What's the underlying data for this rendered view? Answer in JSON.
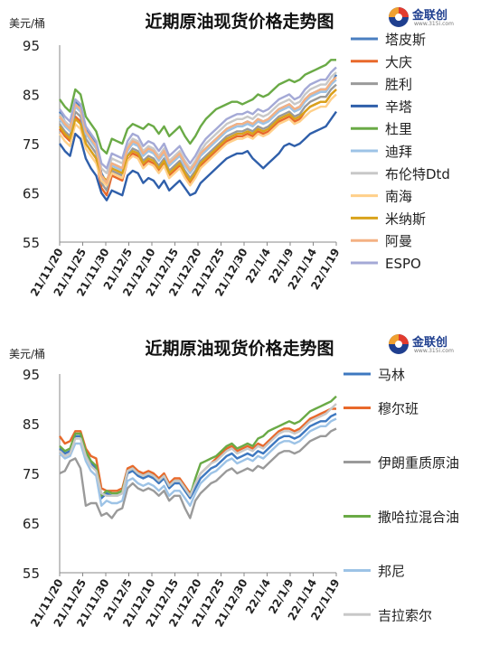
{
  "chart_data": [
    {
      "type": "line",
      "title": "近期原油现货价格走势图",
      "unit_label": "美元/桶",
      "ylim": [
        55,
        95
      ],
      "yticks": [
        55,
        65,
        75,
        85,
        95
      ],
      "xtick_labels": [
        "21/11/20",
        "21/11/25",
        "21/11/30",
        "21/12/5",
        "21/12/10",
        "21/12/15",
        "21/12/20",
        "21/12/25",
        "21/12/30",
        "22/1/4",
        "22/1/9",
        "22/1/14",
        "22/1/19"
      ],
      "grid": false,
      "legend_position": "right",
      "logo": {
        "brand": "金联创",
        "url": "www.315i.com"
      },
      "series": [
        {
          "name": "塔皮斯",
          "color": "#4a7fc0",
          "values": [
            81.5,
            79.5,
            78.5,
            83.5,
            82.5,
            78,
            76.5,
            75,
            69,
            67,
            71,
            70.5,
            70,
            74,
            75.5,
            75,
            73,
            74,
            73.5,
            72,
            73.5,
            71,
            72,
            73,
            71,
            69.5,
            71,
            73,
            74,
            75,
            76,
            77,
            78,
            78.5,
            79,
            79,
            79.5,
            79,
            80,
            79.5,
            80,
            81,
            82,
            82.5,
            83,
            82,
            82.5,
            84,
            85,
            85.5,
            86,
            86,
            87,
            89
          ]
        },
        {
          "name": "大庆",
          "color": "#e8692b",
          "values": [
            78,
            76.5,
            75.5,
            80.5,
            79.5,
            75,
            73.5,
            72,
            66,
            64.5,
            68.5,
            68,
            67.5,
            71.5,
            73,
            72.5,
            70.5,
            71.5,
            71,
            69.5,
            71,
            68.5,
            69.5,
            70.5,
            68.5,
            67,
            68.5,
            70.5,
            71.5,
            72.5,
            73.5,
            74.5,
            75.5,
            76,
            76.5,
            76.5,
            77,
            76.5,
            77.5,
            77,
            77.5,
            78.5,
            79.5,
            80,
            80.5,
            79.5,
            80,
            81.5,
            82.5,
            83,
            83.5,
            83.5,
            85,
            86
          ]
        },
        {
          "name": "胜利",
          "color": "#9a9a9a",
          "values": [
            79,
            77.5,
            76.5,
            81.5,
            80.5,
            76,
            74.5,
            73,
            67,
            65.5,
            69.5,
            69,
            68.5,
            72.5,
            74,
            73.5,
            71.5,
            72.5,
            72,
            70.5,
            72,
            69.5,
            70.5,
            71.5,
            69.5,
            68,
            69.5,
            71.5,
            72.5,
            73.5,
            74.5,
            75.5,
            76.5,
            77,
            77.5,
            77.5,
            78,
            77.5,
            78.5,
            78,
            78.5,
            79.5,
            80.5,
            81,
            81.5,
            80.5,
            81,
            82.5,
            83.5,
            84,
            84.5,
            84.5,
            86,
            87
          ]
        },
        {
          "name": "辛塔",
          "color": "#2f5faa",
          "values": [
            75,
            73.5,
            72.5,
            77,
            76,
            72,
            70,
            68.5,
            65,
            63.5,
            65.5,
            65,
            64.5,
            68.5,
            69.5,
            69,
            67,
            68,
            67.5,
            66,
            67.5,
            65.5,
            66.5,
            67.5,
            66,
            64.5,
            65,
            67,
            68,
            69,
            70,
            71,
            72,
            72.5,
            73,
            73,
            73.5,
            72,
            71,
            70,
            71,
            72,
            73,
            74.5,
            75,
            74.5,
            75,
            76,
            77,
            77.5,
            78,
            78.5,
            80,
            81.5
          ]
        },
        {
          "name": "杜里",
          "color": "#6aaa46",
          "values": [
            84,
            82.5,
            81.5,
            86,
            85,
            80.5,
            79,
            77.5,
            74,
            73,
            76,
            75.5,
            75,
            78,
            79,
            78.5,
            78,
            79,
            78.5,
            77,
            78.5,
            76.5,
            77.5,
            78.5,
            76.5,
            75,
            76.5,
            78.5,
            80,
            81,
            82,
            82.5,
            83,
            83.5,
            83.5,
            83,
            83.5,
            84,
            85,
            84.5,
            85,
            86,
            87,
            87.5,
            88,
            87.5,
            88,
            89,
            89.5,
            90,
            90.5,
            91,
            92,
            92
          ]
        },
        {
          "name": "迪拜",
          "color": "#9dc3e6",
          "values": [
            80,
            78.5,
            77.5,
            82.5,
            81.5,
            77,
            75.5,
            74,
            68,
            66.5,
            70.5,
            70,
            69.5,
            73.5,
            75,
            74.5,
            72.5,
            73.5,
            73,
            71.5,
            73,
            70.5,
            71.5,
            72.5,
            70.5,
            69,
            70.5,
            72.5,
            73.5,
            74.5,
            75.5,
            76.5,
            77.5,
            78,
            78.5,
            78.5,
            79,
            78.5,
            79.5,
            79,
            79.5,
            80.5,
            81.5,
            82,
            82.5,
            81.5,
            82,
            83.5,
            84.5,
            85,
            85.5,
            85.5,
            87,
            88
          ]
        },
        {
          "name": "布伦特Dtd",
          "color": "#c8c8c8",
          "values": [
            81,
            79.5,
            78.5,
            83,
            82,
            77.5,
            76,
            74.5,
            70,
            69,
            72,
            71.5,
            71,
            74.5,
            76,
            75.5,
            73.5,
            74.5,
            74,
            72.5,
            74,
            71.5,
            72.5,
            73.5,
            71.5,
            70,
            71.5,
            73.5,
            75,
            76,
            77,
            78,
            79,
            79.5,
            80,
            80,
            80.5,
            80,
            81,
            80.5,
            81,
            82,
            83,
            83.5,
            84,
            83,
            83.5,
            85,
            86,
            86.5,
            87,
            87,
            88.5,
            89.5
          ]
        },
        {
          "name": "南海",
          "color": "#ffd08a",
          "values": [
            77,
            75.5,
            74.5,
            79,
            78,
            74,
            72.5,
            71,
            67.5,
            66.5,
            69,
            68.5,
            68,
            71.5,
            72.5,
            72,
            70,
            71,
            70.5,
            69,
            70.5,
            68,
            69,
            70,
            68,
            66.5,
            68,
            70,
            71,
            72,
            73,
            74,
            75,
            75.5,
            76,
            76,
            76.5,
            76,
            77,
            76.5,
            77,
            78,
            79,
            79.5,
            80,
            79,
            79.5,
            80.5,
            81.5,
            82,
            82.5,
            82.5,
            84,
            85
          ]
        },
        {
          "name": "米纳斯",
          "color": "#d9a21b",
          "values": [
            78.5,
            77,
            76,
            80,
            79,
            75,
            73.5,
            72,
            68.5,
            67.5,
            70,
            69.5,
            69,
            72.5,
            73.5,
            73,
            71,
            72,
            71.5,
            70,
            71.5,
            69,
            70,
            71,
            69,
            67.5,
            69,
            71,
            72,
            73,
            74,
            75,
            76,
            76.5,
            77,
            77,
            77.5,
            77,
            78,
            77.5,
            78,
            79,
            80,
            80.5,
            81,
            80,
            80.5,
            81.5,
            82.5,
            83,
            83.5,
            83.5,
            85,
            86
          ]
        },
        {
          "name": "阿曼",
          "color": "#f4b183",
          "values": [
            80.5,
            79,
            78,
            83,
            82,
            77.5,
            76,
            74.5,
            68.5,
            67,
            71,
            70.5,
            70,
            74,
            75.5,
            75,
            73,
            74,
            73.5,
            72,
            73.5,
            71,
            72,
            73,
            71,
            69.5,
            71,
            73,
            74,
            75,
            76,
            77,
            78,
            78.5,
            79,
            79,
            79.5,
            79,
            80,
            79.5,
            80,
            81,
            82,
            82.5,
            83,
            82,
            82.5,
            84,
            85,
            85.5,
            86,
            86,
            87.5,
            88.5
          ]
        },
        {
          "name": "ESPO",
          "color": "#a4a9d6",
          "values": [
            82,
            80.5,
            79.5,
            84,
            83,
            78.5,
            77,
            75.5,
            71,
            70,
            73,
            72.5,
            72,
            75.5,
            77,
            76.5,
            74.5,
            75.5,
            75,
            73.5,
            75,
            72.5,
            73.5,
            74.5,
            72.5,
            71,
            72.5,
            74.5,
            76,
            77,
            78,
            79,
            80,
            80.5,
            81,
            81,
            81.5,
            81,
            82,
            81.5,
            82,
            83,
            84,
            84.5,
            85,
            84,
            84.5,
            86,
            87,
            87.5,
            88,
            88,
            89.5,
            90.5
          ]
        }
      ]
    },
    {
      "type": "line",
      "title": "近期原油现货价格走势图",
      "unit_label": "美元/桶",
      "ylim": [
        55,
        95
      ],
      "yticks": [
        55,
        65,
        75,
        85,
        95
      ],
      "xtick_labels": [
        "21/11/20",
        "21/11/25",
        "21/11/30",
        "21/12/5",
        "21/12/10",
        "21/12/15",
        "21/12/20",
        "21/12/25",
        "21/12/30",
        "22/1/4",
        "22/1/9",
        "22/1/14",
        "22/1/19"
      ],
      "grid": false,
      "legend_position": "right",
      "logo": {
        "brand": "金联创",
        "url": "www.315i.com"
      },
      "series": [
        {
          "name": "马林",
          "color": "#3e78c0",
          "values": [
            80,
            79,
            79.5,
            82.5,
            82.5,
            79,
            77,
            76,
            70,
            71,
            70.5,
            70.5,
            71,
            75,
            75.5,
            74.5,
            74,
            74.5,
            74,
            73,
            74,
            72,
            73,
            73,
            71.5,
            70,
            72,
            74,
            75,
            76,
            76.5,
            77.5,
            78.5,
            79,
            78,
            78.5,
            79,
            78.5,
            79.5,
            79,
            80,
            81,
            82,
            82.5,
            82.5,
            82,
            82.5,
            83.5,
            84.5,
            85,
            85.5,
            85.5,
            86.5,
            87
          ]
        },
        {
          "name": "穆尔班",
          "color": "#e8692b",
          "values": [
            82.5,
            81,
            81.5,
            83.5,
            83.5,
            80,
            78.5,
            78,
            72,
            71.5,
            71.5,
            71.5,
            72,
            76,
            76.5,
            75.5,
            75,
            75.5,
            75,
            74,
            75,
            73,
            74,
            74,
            72.5,
            71,
            73,
            75,
            76,
            77,
            78,
            79,
            80,
            80.5,
            79.5,
            80,
            80.5,
            80,
            81,
            80.5,
            81.5,
            82.5,
            83.5,
            84,
            84,
            83.5,
            84,
            85,
            86,
            86.5,
            87,
            87.5,
            88,
            88
          ]
        },
        {
          "name": "伊朗重质原油",
          "color": "#9a9a9a",
          "values": [
            75,
            75.5,
            77.5,
            78,
            76,
            68.5,
            69,
            69,
            66.5,
            67,
            66,
            67.5,
            68,
            72,
            73,
            72,
            71.5,
            72,
            71.5,
            70.5,
            71.5,
            69.5,
            70.5,
            70.5,
            68,
            66,
            69.5,
            71,
            72,
            73,
            73.5,
            74.5,
            75.5,
            76,
            75,
            75.5,
            76,
            75.5,
            76.5,
            76,
            77,
            78,
            79,
            79.5,
            79.5,
            79,
            79.5,
            80.5,
            81.5,
            82,
            82.5,
            82.5,
            83.5,
            84
          ]
        },
        {
          "name": "撒哈拉混合油",
          "color": "#6aaa46",
          "values": [
            80.5,
            79.5,
            80,
            83,
            83,
            79.5,
            77.5,
            76.5,
            70.5,
            71.5,
            71,
            71,
            71.5,
            75.5,
            76,
            75,
            74.5,
            75,
            74.5,
            73.5,
            74.5,
            72.5,
            73.5,
            73.5,
            72,
            70.5,
            74,
            77,
            77.5,
            78,
            78.5,
            79.5,
            80.5,
            81,
            80,
            80.5,
            81,
            80.5,
            82,
            82.5,
            83.5,
            84,
            84.5,
            85,
            85.5,
            85,
            85.5,
            86.5,
            87.5,
            88,
            88.5,
            89,
            89.5,
            90.5
          ]
        },
        {
          "name": "邦尼",
          "color": "#9dc3e6",
          "values": [
            79,
            78,
            78.5,
            81,
            81,
            77.5,
            75.5,
            74.5,
            68.5,
            69.5,
            69,
            69,
            69.5,
            73.5,
            74,
            73,
            72.5,
            73,
            72.5,
            71.5,
            72.5,
            70.5,
            71.5,
            71.5,
            70,
            68.5,
            71,
            73,
            74,
            75,
            75.5,
            76.5,
            77.5,
            78,
            77,
            77.5,
            78,
            77.5,
            78.5,
            78,
            79,
            80,
            81,
            81.5,
            81.5,
            81,
            81.5,
            82.5,
            83.5,
            84,
            84.5,
            84.5,
            85.5,
            86
          ]
        },
        {
          "name": "吉拉索尔",
          "color": "#c8c8c8",
          "values": [
            79.5,
            78.5,
            79,
            82,
            82,
            78.5,
            76.5,
            75.5,
            71,
            70.5,
            70.5,
            70.5,
            71,
            75.5,
            76,
            75,
            74.5,
            75,
            74.5,
            73.5,
            74.5,
            72.5,
            73.5,
            73.5,
            72,
            70.5,
            73,
            75,
            76,
            77,
            77.5,
            78.5,
            79.5,
            80,
            79,
            79.5,
            80,
            79.5,
            80.5,
            80,
            81,
            82,
            83,
            83.5,
            83.5,
            83,
            83.5,
            84.5,
            85.5,
            86,
            86.5,
            87,
            88,
            89
          ]
        }
      ]
    }
  ]
}
